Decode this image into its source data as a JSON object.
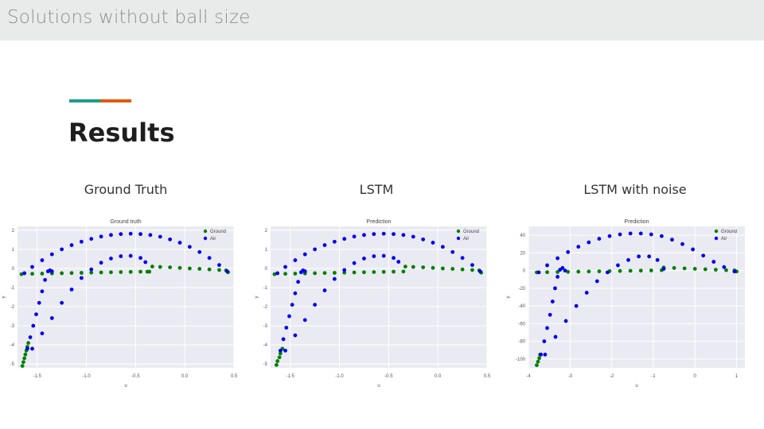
{
  "slide": {
    "header_title": "Solutions without ball size",
    "heading": "Results",
    "captions": [
      "Ground Truth",
      "LSTM",
      "LSTM with noise"
    ],
    "accent_colors": [
      "#1f9c8c",
      "#e05a0c"
    ]
  },
  "chart_data": [
    {
      "type": "scatter",
      "title": "Ground truth",
      "xlabel": "u",
      "ylabel": "y",
      "xlim": [
        -1.7,
        0.5
      ],
      "ylim": [
        -5.2,
        2.2
      ],
      "xticks": [
        -1.5,
        -1.0,
        -0.5,
        0.0,
        0.5
      ],
      "xtick_labels": [
        "-1.5",
        "-1.0",
        "-0.5",
        "0.0",
        "0.5"
      ],
      "yticks": [
        2,
        1,
        0,
        -1,
        -2,
        -3,
        -4,
        -5
      ],
      "ytick_labels": [
        "2",
        "1",
        "0",
        "-1",
        "-2",
        "-3",
        "-4",
        "-5"
      ],
      "legend": "top-right",
      "series": [
        {
          "name": "Ground",
          "color": "#007f00",
          "points": [
            [
              -1.65,
              -5.1
            ],
            [
              -1.64,
              -4.9
            ],
            [
              -1.63,
              -4.7
            ],
            [
              -1.62,
              -4.5
            ],
            [
              -1.61,
              -4.3
            ],
            [
              -1.6,
              -4.1
            ],
            [
              -1.59,
              -3.9
            ],
            [
              -1.66,
              -0.3
            ],
            [
              -1.55,
              -0.28
            ],
            [
              -1.45,
              -0.27
            ],
            [
              -1.35,
              -0.26
            ],
            [
              -1.25,
              -0.25
            ],
            [
              -1.15,
              -0.24
            ],
            [
              -1.05,
              -0.23
            ],
            [
              -0.95,
              -0.22
            ],
            [
              -0.85,
              -0.21
            ],
            [
              -0.75,
              -0.2
            ],
            [
              -0.65,
              -0.19
            ],
            [
              -0.55,
              -0.18
            ],
            [
              -0.45,
              -0.17
            ],
            [
              -0.38,
              -0.17
            ],
            [
              -0.36,
              -0.17
            ],
            [
              -0.33,
              0.1
            ],
            [
              -0.25,
              0.08
            ],
            [
              -0.15,
              0.06
            ],
            [
              -0.05,
              0.03
            ],
            [
              0.05,
              0.0
            ],
            [
              0.15,
              -0.02
            ],
            [
              0.25,
              -0.05
            ],
            [
              0.35,
              -0.08
            ],
            [
              0.42,
              -0.1
            ],
            [
              0.44,
              -0.2
            ]
          ]
        },
        {
          "name": "Air",
          "color": "#0000ee",
          "points": [
            [
              -1.63,
              -0.25
            ],
            [
              -1.55,
              0.08
            ],
            [
              -1.45,
              0.43
            ],
            [
              -1.35,
              0.74
            ],
            [
              -1.25,
              1.0
            ],
            [
              -1.15,
              1.22
            ],
            [
              -1.05,
              1.4
            ],
            [
              -0.95,
              1.55
            ],
            [
              -0.85,
              1.67
            ],
            [
              -0.75,
              1.75
            ],
            [
              -0.65,
              1.8
            ],
            [
              -0.55,
              1.82
            ],
            [
              -0.45,
              1.8
            ],
            [
              -0.35,
              1.75
            ],
            [
              -0.25,
              1.66
            ],
            [
              -0.15,
              1.52
            ],
            [
              -0.05,
              1.35
            ],
            [
              0.05,
              1.13
            ],
            [
              0.15,
              0.86
            ],
            [
              0.25,
              0.55
            ],
            [
              0.35,
              0.18
            ],
            [
              0.43,
              -0.15
            ],
            [
              -1.6,
              -4.2
            ],
            [
              -1.57,
              -3.6
            ],
            [
              -1.54,
              -3.0
            ],
            [
              -1.51,
              -2.4
            ],
            [
              -1.48,
              -1.8
            ],
            [
              -1.45,
              -1.2
            ],
            [
              -1.42,
              -0.6
            ],
            [
              -1.39,
              -0.15
            ],
            [
              -1.37,
              -0.1
            ],
            [
              -1.35,
              -0.15
            ],
            [
              -1.55,
              -4.2
            ],
            [
              -1.45,
              -3.4
            ],
            [
              -1.35,
              -2.6
            ],
            [
              -1.25,
              -1.8
            ],
            [
              -1.15,
              -1.1
            ],
            [
              -1.05,
              -0.5
            ],
            [
              -0.95,
              -0.05
            ],
            [
              -0.85,
              0.3
            ],
            [
              -0.75,
              0.52
            ],
            [
              -0.65,
              0.64
            ],
            [
              -0.55,
              0.66
            ],
            [
              -0.45,
              0.55
            ],
            [
              -0.4,
              0.33
            ]
          ]
        }
      ]
    },
    {
      "type": "scatter",
      "title": "Prediction",
      "xlabel": "u",
      "ylabel": "y",
      "xlim": [
        -1.7,
        0.5
      ],
      "ylim": [
        -5.2,
        2.2
      ],
      "xticks": [
        -1.5,
        -1.0,
        -0.5,
        0.0,
        0.5
      ],
      "xtick_labels": [
        "-1.5",
        "-1.0",
        "-0.5",
        "0.0",
        "0.5"
      ],
      "yticks": [
        2,
        1,
        0,
        -1,
        -2,
        -3,
        -4,
        -5
      ],
      "ytick_labels": [
        "2",
        "1",
        "0",
        "-1",
        "-2",
        "-3",
        "-4",
        "-5"
      ],
      "legend": "top-right",
      "series": [
        {
          "name": "Ground",
          "color": "#007f00",
          "points": [
            [
              -1.64,
              -5.05
            ],
            [
              -1.63,
              -4.85
            ],
            [
              -1.61,
              -4.65
            ],
            [
              -1.6,
              -4.45
            ],
            [
              -1.58,
              -4.2
            ],
            [
              -1.66,
              -0.3
            ],
            [
              -1.55,
              -0.28
            ],
            [
              -1.45,
              -0.27
            ],
            [
              -1.35,
              -0.26
            ],
            [
              -1.25,
              -0.25
            ],
            [
              -1.15,
              -0.24
            ],
            [
              -1.05,
              -0.23
            ],
            [
              -0.95,
              -0.22
            ],
            [
              -0.85,
              -0.21
            ],
            [
              -0.75,
              -0.2
            ],
            [
              -0.65,
              -0.19
            ],
            [
              -0.55,
              -0.18
            ],
            [
              -0.45,
              -0.17
            ],
            [
              -0.35,
              -0.16
            ],
            [
              -0.33,
              0.1
            ],
            [
              -0.25,
              0.08
            ],
            [
              -0.15,
              0.06
            ],
            [
              -0.05,
              0.03
            ],
            [
              0.05,
              0.0
            ],
            [
              0.15,
              -0.02
            ],
            [
              0.25,
              -0.05
            ],
            [
              0.35,
              -0.08
            ],
            [
              0.42,
              -0.1
            ],
            [
              0.44,
              -0.22
            ]
          ]
        },
        {
          "name": "Air",
          "color": "#0000ee",
          "points": [
            [
              -1.63,
              -0.25
            ],
            [
              -1.55,
              0.08
            ],
            [
              -1.45,
              0.43
            ],
            [
              -1.35,
              0.74
            ],
            [
              -1.25,
              1.0
            ],
            [
              -1.15,
              1.22
            ],
            [
              -1.05,
              1.4
            ],
            [
              -0.95,
              1.55
            ],
            [
              -0.85,
              1.67
            ],
            [
              -0.75,
              1.75
            ],
            [
              -0.65,
              1.8
            ],
            [
              -0.55,
              1.82
            ],
            [
              -0.45,
              1.8
            ],
            [
              -0.35,
              1.75
            ],
            [
              -0.25,
              1.66
            ],
            [
              -0.15,
              1.52
            ],
            [
              -0.05,
              1.35
            ],
            [
              0.05,
              1.13
            ],
            [
              0.15,
              0.86
            ],
            [
              0.25,
              0.55
            ],
            [
              0.35,
              0.18
            ],
            [
              0.43,
              -0.15
            ],
            [
              -1.6,
              -4.3
            ],
            [
              -1.57,
              -3.7
            ],
            [
              -1.54,
              -3.1
            ],
            [
              -1.51,
              -2.5
            ],
            [
              -1.48,
              -1.9
            ],
            [
              -1.45,
              -1.3
            ],
            [
              -1.42,
              -0.7
            ],
            [
              -1.39,
              -0.2
            ],
            [
              -1.37,
              -0.1
            ],
            [
              -1.35,
              -0.15
            ],
            [
              -1.55,
              -4.3
            ],
            [
              -1.45,
              -3.5
            ],
            [
              -1.35,
              -2.7
            ],
            [
              -1.25,
              -1.9
            ],
            [
              -1.15,
              -1.15
            ],
            [
              -1.05,
              -0.55
            ],
            [
              -0.95,
              -0.08
            ],
            [
              -0.85,
              0.28
            ],
            [
              -0.75,
              0.52
            ],
            [
              -0.65,
              0.64
            ],
            [
              -0.55,
              0.66
            ],
            [
              -0.45,
              0.55
            ],
            [
              -0.4,
              0.35
            ]
          ]
        }
      ]
    },
    {
      "type": "scatter",
      "title": "Prediction",
      "xlabel": "u",
      "ylabel": "y",
      "xlim": [
        -4,
        1.2
      ],
      "ylim": [
        -110,
        50
      ],
      "xticks": [
        -4,
        -3,
        -2,
        -1,
        0,
        1
      ],
      "xtick_labels": [
        "-4",
        "-3",
        "-2",
        "-1",
        "0",
        "1"
      ],
      "yticks": [
        40,
        20,
        0,
        -20,
        -40,
        -60,
        -80,
        -100
      ],
      "ytick_labels": [
        "40",
        "20",
        "0",
        "-20",
        "-40",
        "-60",
        "-80",
        "-100"
      ],
      "legend": "top-right",
      "series": [
        {
          "name": "Ground",
          "color": "#007f00",
          "points": [
            [
              -3.8,
              -107
            ],
            [
              -3.77,
              -103
            ],
            [
              -3.74,
              -99
            ],
            [
              -3.72,
              -95
            ],
            [
              -3.8,
              -2
            ],
            [
              -3.55,
              -1.8
            ],
            [
              -3.3,
              -1.6
            ],
            [
              -3.05,
              -1.4
            ],
            [
              -2.8,
              -1.2
            ],
            [
              -2.55,
              -1.0
            ],
            [
              -2.3,
              -0.8
            ],
            [
              -2.05,
              -0.6
            ],
            [
              -1.8,
              -0.4
            ],
            [
              -1.55,
              -0.2
            ],
            [
              -1.3,
              0.0
            ],
            [
              -1.05,
              0.2
            ],
            [
              -0.8,
              0.5
            ],
            [
              -0.75,
              3.5
            ],
            [
              -0.5,
              3.0
            ],
            [
              -0.25,
              2.5
            ],
            [
              0.0,
              2.0
            ],
            [
              0.25,
              1.5
            ],
            [
              0.5,
              1.0
            ],
            [
              0.75,
              0.5
            ],
            [
              0.95,
              0.2
            ],
            [
              1.0,
              -1.0
            ]
          ]
        },
        {
          "name": "Air",
          "color": "#0000ee",
          "points": [
            [
              -3.75,
              -2
            ],
            [
              -3.55,
              6
            ],
            [
              -3.3,
              14
            ],
            [
              -3.05,
              21
            ],
            [
              -2.8,
              27
            ],
            [
              -2.55,
              32
            ],
            [
              -2.3,
              36
            ],
            [
              -2.05,
              39
            ],
            [
              -1.8,
              41
            ],
            [
              -1.55,
              42
            ],
            [
              -1.3,
              42
            ],
            [
              -1.05,
              41
            ],
            [
              -0.8,
              39
            ],
            [
              -0.55,
              35
            ],
            [
              -0.3,
              30
            ],
            [
              -0.05,
              24
            ],
            [
              0.2,
              17
            ],
            [
              0.45,
              10
            ],
            [
              0.7,
              4
            ],
            [
              0.95,
              -1
            ],
            [
              -3.7,
              -95
            ],
            [
              -3.62,
              -80
            ],
            [
              -3.55,
              -65
            ],
            [
              -3.48,
              -50
            ],
            [
              -3.42,
              -35
            ],
            [
              -3.36,
              -20
            ],
            [
              -3.3,
              -7
            ],
            [
              -3.24,
              1
            ],
            [
              -3.18,
              3
            ],
            [
              -3.12,
              0
            ],
            [
              -3.6,
              -95
            ],
            [
              -3.35,
              -75
            ],
            [
              -3.1,
              -57
            ],
            [
              -2.85,
              -40
            ],
            [
              -2.6,
              -25
            ],
            [
              -2.35,
              -12
            ],
            [
              -2.1,
              -2
            ],
            [
              -1.85,
              6
            ],
            [
              -1.6,
              12
            ],
            [
              -1.35,
              16
            ],
            [
              -1.1,
              16
            ],
            [
              -0.9,
              12
            ],
            [
              -0.75,
              2
            ]
          ]
        }
      ]
    }
  ]
}
